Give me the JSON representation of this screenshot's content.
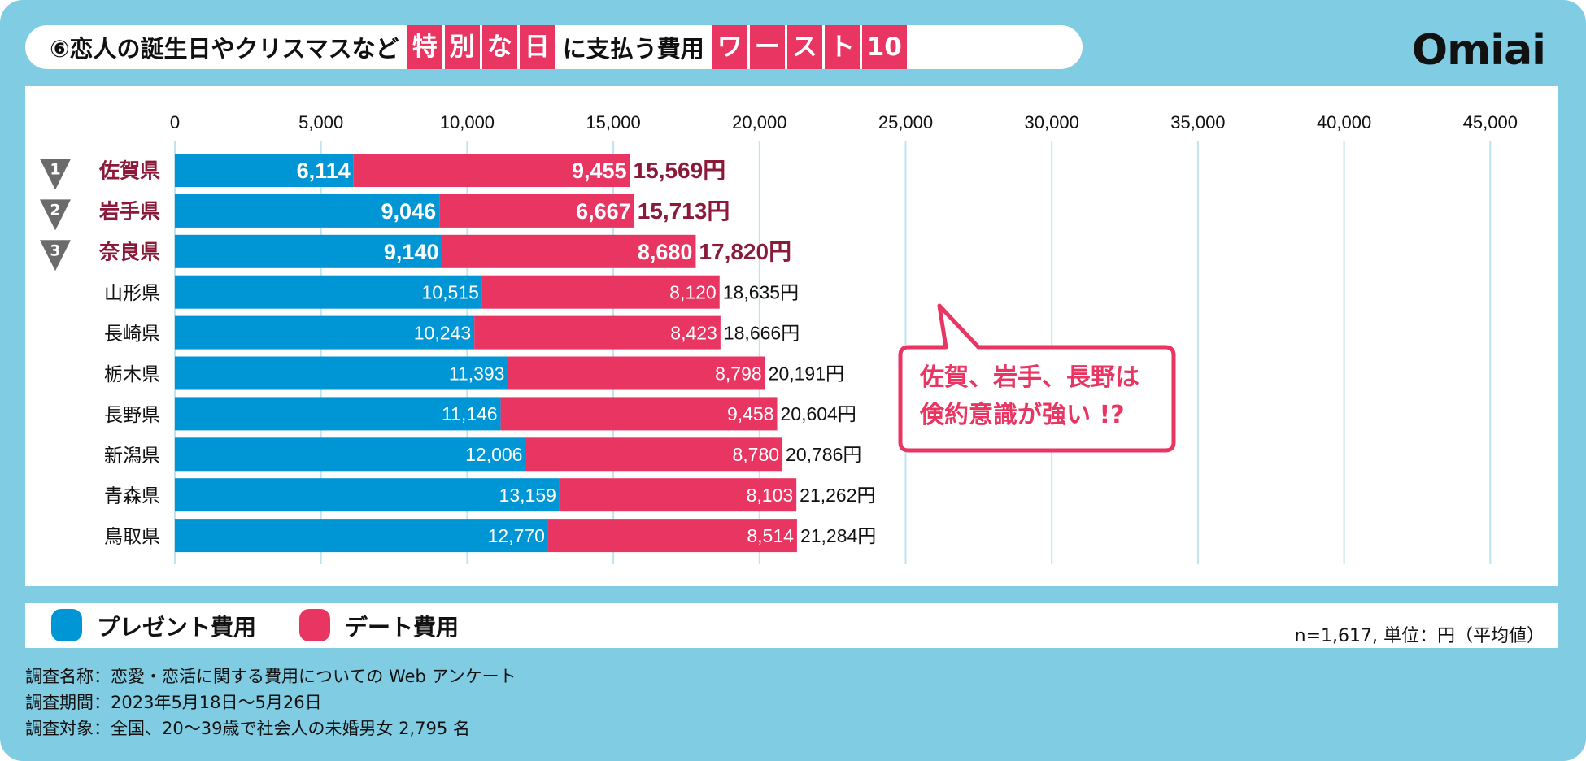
{
  "title": {
    "prefix": "⑥恋人の誕生日やクリスマスなど",
    "highlight1": [
      "特",
      "別",
      "な",
      "日"
    ],
    "middle": "に支払う費用",
    "highlight2": [
      "ワ",
      "ー",
      "ス",
      "ト",
      "10"
    ]
  },
  "logo": "Omiai",
  "chart_data": {
    "type": "bar",
    "stacked": true,
    "orientation": "horizontal",
    "xlim": [
      0,
      47000
    ],
    "x_ticks": [
      "0",
      "5,000",
      "10,000",
      "15,000",
      "20,000",
      "25,000",
      "30,000",
      "35,000",
      "40,000",
      "45,000"
    ],
    "grid": true,
    "legend_placement": "bottom",
    "categories": [
      "佐賀県",
      "岩手県",
      "奈良県",
      "山形県",
      "長崎県",
      "栃木県",
      "長野県",
      "新潟県",
      "青森県",
      "鳥取県"
    ],
    "ranks": [
      "1",
      "2",
      "3"
    ],
    "series": [
      {
        "name": "プレゼント費用",
        "color": "#0096d6",
        "values": [
          6114,
          9046,
          9140,
          10515,
          10243,
          11393,
          11146,
          12006,
          13159,
          12770
        ],
        "labels": [
          "6,114",
          "9,046",
          "9,140",
          "10,515",
          "10,243",
          "11,393",
          "11,146",
          "12,006",
          "13,159",
          "12,770"
        ]
      },
      {
        "name": "デート費用",
        "color": "#e83562",
        "values": [
          9455,
          6667,
          8680,
          8120,
          8423,
          8798,
          9458,
          8780,
          8103,
          8514
        ],
        "labels": [
          "9,455",
          "6,667",
          "8,680",
          "8,120",
          "8,423",
          "8,798",
          "9,458",
          "8,780",
          "8,103",
          "8,514"
        ]
      }
    ],
    "totals": [
      "15,569円",
      "15,713円",
      "17,820円",
      "18,635円",
      "18,666円",
      "20,191円",
      "20,604円",
      "20,786円",
      "21,262円",
      "21,284円"
    ],
    "highlight_color": "#8b1a3a"
  },
  "callout": {
    "line1": "佐賀、岩手、長野は",
    "line2": "倹約意識が強い !?"
  },
  "legend": {
    "present": "プレゼント費用",
    "date": "デート費用",
    "note": "n=1,617, 単位：円（平均値）"
  },
  "footer": {
    "name": "調査名称：恋愛・恋活に関する費用についての Web アンケート",
    "period": "調査期間：2023年5月18日〜5月26日",
    "target": "調査対象：全国、20〜39歳で社会人の未婚男女 2,795 名"
  }
}
